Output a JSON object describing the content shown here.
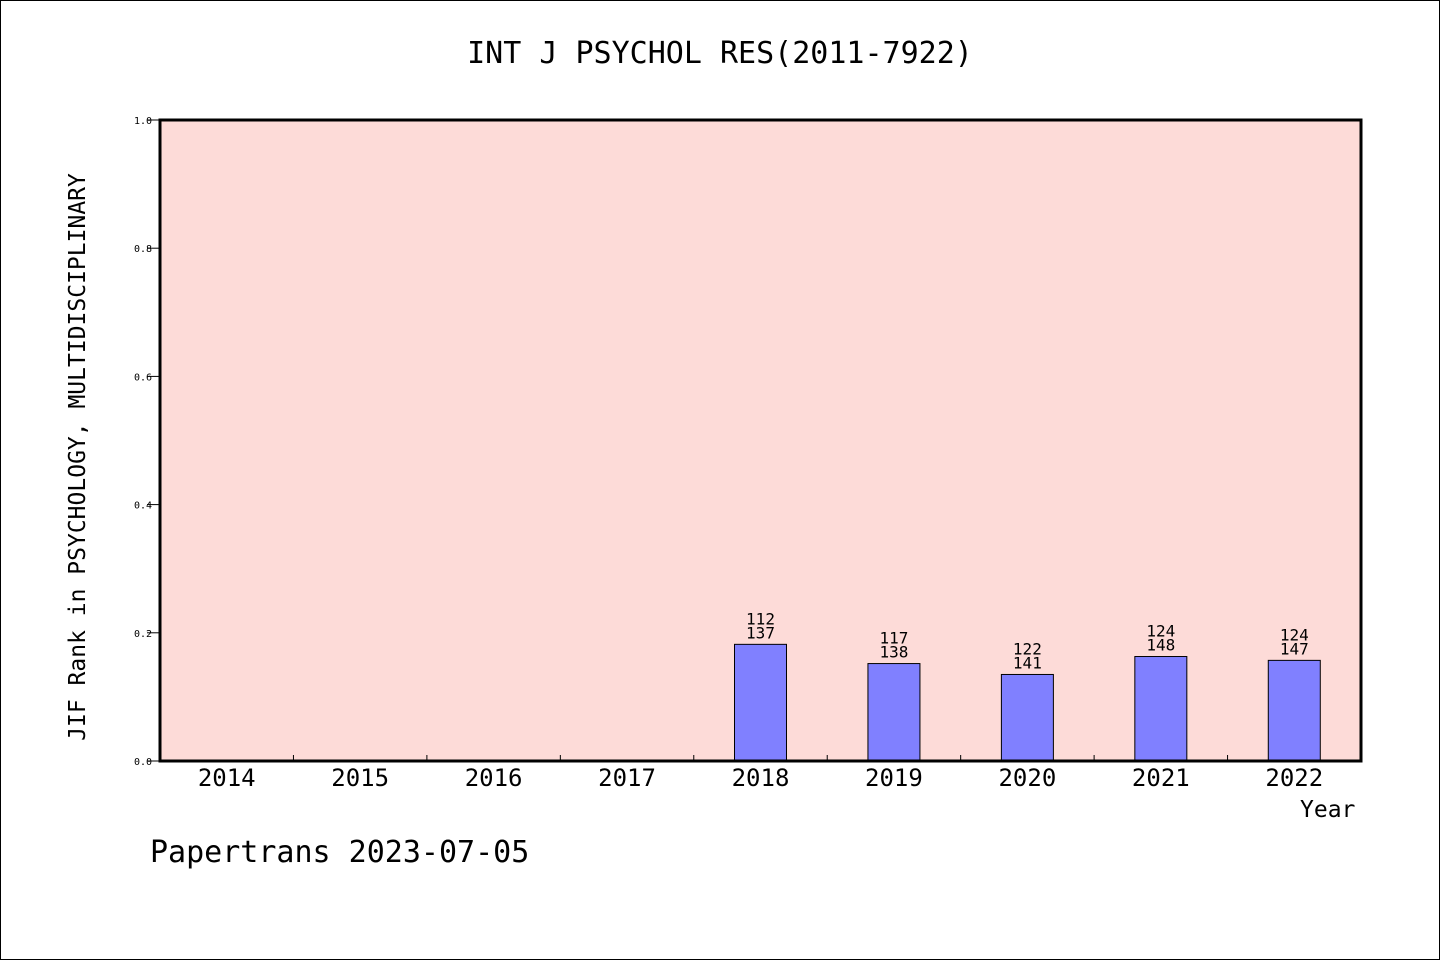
{
  "chart_data": {
    "type": "bar",
    "title": "INT J PSYCHOL RES(2011-7922)",
    "xlabel": "Year",
    "ylabel": "JIF Rank in PSYCHOLOGY, MULTIDISCIPLINARY",
    "ylim": [
      0,
      1.0
    ],
    "yticks": [
      "0.0",
      "0.2",
      "0.4",
      "0.6",
      "0.8",
      "1.0"
    ],
    "categories": [
      "2014",
      "2015",
      "2016",
      "2017",
      "2018",
      "2019",
      "2020",
      "2021",
      "2022"
    ],
    "values": [
      null,
      null,
      null,
      null,
      0.182,
      0.152,
      0.135,
      0.163,
      0.157
    ],
    "bar_labels": [
      null,
      null,
      null,
      null,
      {
        "rank": "112",
        "total": "137"
      },
      {
        "rank": "117",
        "total": "138"
      },
      {
        "rank": "122",
        "total": "141"
      },
      {
        "rank": "124",
        "total": "148"
      },
      {
        "rank": "124",
        "total": "147"
      }
    ],
    "grid": false,
    "colors": {
      "plot_background": "#fddbd8",
      "bar_fill": "#8080ff",
      "bar_stroke": "#000000"
    }
  },
  "footer": {
    "text": "Papertrans 2023-07-05"
  }
}
